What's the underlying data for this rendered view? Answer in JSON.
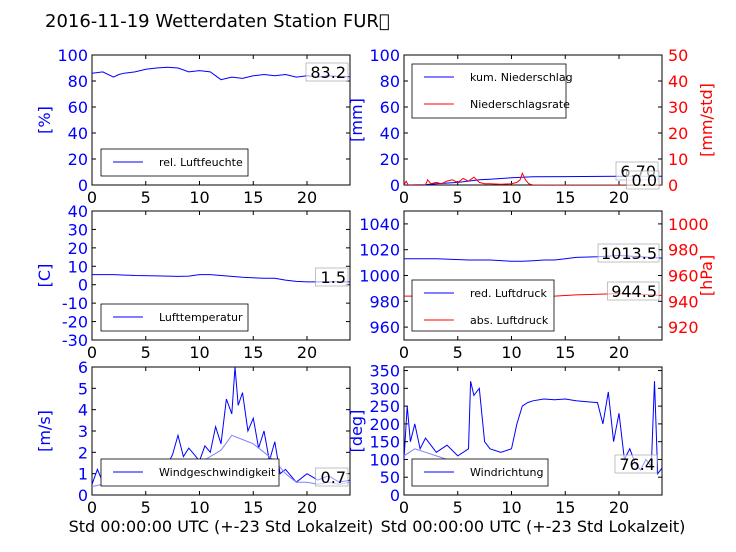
{
  "title": "2016-11-19 Wetterdaten Station FUR\u0000",
  "xlabel": "Std 00:00:00 UTC (+-23 Std Lokalzeit)",
  "colors": {
    "blue": "#0000ff",
    "red": "#ff0000",
    "light_blue": "#8080ff",
    "black": "#000000"
  },
  "chart_data": [
    {
      "id": "humidity",
      "type": "line",
      "ylabel": "[%]",
      "xlim": [
        0,
        24
      ],
      "ylim": [
        0,
        100
      ],
      "xticks": [
        0,
        5,
        10,
        15,
        20
      ],
      "yticks": [
        0,
        20,
        40,
        60,
        80,
        100
      ],
      "legend_position": "lower-left",
      "series": [
        {
          "name": "rel. Luftfeuchte",
          "color": "#0000ff",
          "x": [
            0,
            1,
            2,
            2.5,
            3,
            4,
            5,
            6,
            7,
            8,
            9,
            10,
            11,
            12,
            12.5,
            13,
            14,
            15,
            16,
            17,
            18,
            19,
            20,
            21,
            22,
            23,
            24
          ],
          "y": [
            86,
            87,
            83,
            85,
            86,
            87,
            89,
            90,
            90.5,
            90,
            87,
            88,
            87,
            81,
            82,
            83,
            82,
            84,
            85,
            84,
            85,
            83,
            84,
            83,
            84,
            83.5,
            83.2
          ]
        }
      ],
      "last_value_label": "83.2"
    },
    {
      "id": "precipitation",
      "type": "line",
      "ylabel": "[mm]",
      "ylabel_right": "[mm/std]",
      "xlim": [
        0,
        24
      ],
      "ylim": [
        0,
        100
      ],
      "ylim_right": [
        0,
        50
      ],
      "xticks": [
        0,
        5,
        10,
        15,
        20
      ],
      "yticks": [
        0,
        20,
        40,
        60,
        80,
        100
      ],
      "yticks_right": [
        0,
        10,
        20,
        30,
        40,
        50
      ],
      "legend_position": "upper-left",
      "series": [
        {
          "name": "kum. Niederschlag",
          "color": "#0000ff",
          "axis": "left",
          "x": [
            0,
            2,
            3,
            5,
            6,
            7,
            8,
            9,
            10,
            11,
            12,
            15,
            20,
            24
          ],
          "y": [
            0,
            0.3,
            1,
            2,
            3,
            4,
            4.5,
            5,
            5.5,
            6,
            6.3,
            6.5,
            6.7,
            6.7
          ]
        },
        {
          "name": "Niederschlagsrate",
          "color": "#ff0000",
          "axis": "right",
          "x": [
            0,
            0.2,
            0.4,
            1,
            2,
            2.2,
            2.5,
            3,
            3.5,
            4,
            4.5,
            5,
            5.5,
            6,
            6.5,
            7,
            7.5,
            8,
            9,
            10,
            10.5,
            10.8,
            11,
            11.3,
            11.6,
            12,
            14,
            18,
            24
          ],
          "y": [
            0,
            1.5,
            0,
            0,
            0,
            2,
            0.5,
            1,
            0.5,
            1.5,
            2,
            1,
            2.5,
            1.5,
            3,
            1,
            0.5,
            0.5,
            0.3,
            0.5,
            1,
            2,
            4.5,
            2,
            0.5,
            0,
            0,
            0,
            0
          ]
        }
      ],
      "last_value_labels": [
        "6.70",
        "0.0"
      ]
    },
    {
      "id": "temperature",
      "type": "line",
      "ylabel": "[C]",
      "xlim": [
        0,
        24
      ],
      "ylim": [
        -30,
        40
      ],
      "xticks": [
        0,
        5,
        10,
        15,
        20
      ],
      "yticks": [
        -30,
        -20,
        -10,
        0,
        10,
        20,
        30,
        40
      ],
      "legend_position": "lower-left",
      "series": [
        {
          "name": "Lufttemperatur",
          "color": "#0000ff",
          "x": [
            0,
            2,
            4,
            6,
            8,
            9,
            10,
            11,
            12,
            14,
            16,
            17,
            18,
            19,
            20,
            21,
            22,
            23,
            24
          ],
          "y": [
            5.5,
            5.5,
            5,
            4.8,
            4.5,
            4.7,
            5.5,
            5.5,
            5,
            4,
            3.5,
            3.5,
            2.5,
            1.8,
            1.5,
            1.5,
            1.6,
            1.5,
            1.5
          ]
        }
      ],
      "last_value_label": "1.5"
    },
    {
      "id": "pressure",
      "type": "line",
      "ylabel_right": "[hPa]",
      "xlim": [
        0,
        24
      ],
      "ylim": [
        950,
        1050
      ],
      "ylim_right": [
        910,
        1010
      ],
      "xticks": [
        0,
        5,
        10,
        15,
        20
      ],
      "yticks": [
        960,
        980,
        1000,
        1020,
        1040
      ],
      "yticks_right": [
        920,
        940,
        960,
        980,
        1000
      ],
      "legend_position": "lower-left",
      "series": [
        {
          "name": "red. Luftdruck",
          "color": "#0000ff",
          "axis": "left",
          "x": [
            0,
            3,
            6,
            8,
            10,
            11,
            12,
            13,
            14,
            15,
            16,
            18,
            20,
            22,
            24
          ],
          "y": [
            1013,
            1013,
            1012,
            1012,
            1011,
            1011,
            1011.5,
            1012,
            1012,
            1013,
            1014,
            1014.5,
            1015.5,
            1014.5,
            1013.5
          ]
        },
        {
          "name": "abs. Luftdruck",
          "color": "#ff0000",
          "axis": "right",
          "x": [
            0,
            3,
            6,
            8,
            10,
            11,
            12,
            13,
            14,
            15,
            16,
            18,
            20,
            22,
            24
          ],
          "y": [
            944,
            944,
            943.5,
            943,
            942.5,
            942.5,
            943,
            943.5,
            944,
            944.5,
            945,
            945.5,
            946,
            945.5,
            944.5
          ]
        }
      ],
      "last_value_labels": [
        "1013.5",
        "944.5"
      ]
    },
    {
      "id": "windspeed",
      "type": "line",
      "ylabel": "[m/s]",
      "xlim": [
        0,
        24
      ],
      "ylim": [
        0,
        6
      ],
      "xticks": [
        0,
        5,
        10,
        15,
        20
      ],
      "yticks": [
        0,
        1,
        2,
        3,
        4,
        5,
        6
      ],
      "legend_position": "lower-left",
      "series": [
        {
          "name": "Windgeschwindigkeit",
          "color": "#0000ff",
          "x": [
            0,
            0.5,
            1,
            2,
            3,
            4,
            5,
            6,
            7,
            7.5,
            8,
            8.5,
            9,
            10,
            10.5,
            11,
            11.5,
            12,
            12.5,
            13,
            13.3,
            13.6,
            14,
            14.5,
            15,
            15.5,
            16,
            16.5,
            17,
            17.5,
            18,
            19,
            20,
            21,
            22,
            23,
            24
          ],
          "y": [
            0.5,
            1.2,
            0.6,
            0.6,
            0.9,
            1.2,
            1.0,
            1.2,
            1.4,
            1.9,
            2.8,
            1.8,
            2.2,
            1.6,
            2.3,
            2.0,
            3.2,
            2.4,
            4.5,
            3.8,
            6.0,
            4.2,
            4.8,
            3.0,
            3.6,
            2.2,
            3.0,
            1.6,
            2.5,
            1.0,
            1.2,
            0.6,
            1.0,
            0.7,
            0.9,
            0.6,
            0.7
          ]
        },
        {
          "name": "",
          "color": "#8080ff",
          "x": [
            0,
            1,
            2,
            3,
            4,
            5,
            6,
            7,
            8,
            9,
            10,
            11,
            12,
            13,
            14,
            15,
            16,
            17,
            18,
            19,
            20,
            21,
            22,
            23,
            24
          ],
          "y": [
            0.4,
            0.5,
            0.5,
            0.7,
            0.9,
            0.8,
            0.9,
            1.1,
            1.4,
            1.6,
            1.5,
            1.8,
            2.1,
            2.8,
            2.6,
            2.4,
            2.0,
            1.6,
            1.0,
            0.6,
            0.6,
            0.5,
            0.6,
            0.5,
            0.6
          ]
        }
      ],
      "last_value_label": "0.7"
    },
    {
      "id": "winddirection",
      "type": "line",
      "ylabel": "[deg]",
      "xlim": [
        0,
        24
      ],
      "ylim": [
        0,
        360
      ],
      "xticks": [
        0,
        5,
        10,
        15,
        20
      ],
      "yticks": [
        0,
        50,
        100,
        150,
        200,
        250,
        300,
        350
      ],
      "legend_position": "lower-left",
      "series": [
        {
          "name": "Windrichtung",
          "color": "#0000ff",
          "x": [
            0,
            0.3,
            0.6,
            1,
            1.5,
            2,
            3,
            4,
            5,
            6,
            6.2,
            6.5,
            7,
            7.5,
            8,
            9,
            10,
            10.5,
            11,
            11.5,
            12,
            13,
            14,
            15,
            16,
            17,
            18,
            18.5,
            19,
            19.5,
            20,
            20.5,
            21,
            21.5,
            22,
            22.5,
            23,
            23.3,
            23.6,
            24
          ],
          "y": [
            100,
            250,
            150,
            200,
            130,
            160,
            120,
            140,
            110,
            130,
            320,
            280,
            300,
            150,
            130,
            120,
            130,
            200,
            250,
            260,
            265,
            270,
            268,
            270,
            265,
            262,
            260,
            200,
            290,
            150,
            230,
            100,
            130,
            90,
            70,
            100,
            80,
            320,
            60,
            76
          ]
        },
        {
          "name": "",
          "color": "#8080ff",
          "x": [
            0,
            1,
            2,
            3,
            4,
            5,
            6
          ],
          "y": [
            110,
            130,
            120,
            110,
            100,
            90,
            95
          ]
        }
      ],
      "last_value_label": "76.4"
    }
  ]
}
